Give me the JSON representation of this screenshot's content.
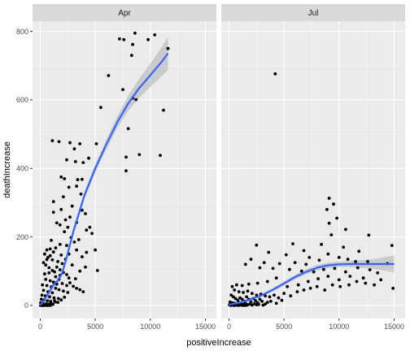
{
  "chart_data": {
    "type": "scatter",
    "xlabel": "positiveIncrease",
    "ylabel": "deathIncrease",
    "xlim": [
      -700,
      16000
    ],
    "ylim": [
      -38,
      830
    ],
    "x_ticks": [
      0,
      5000,
      10000,
      15000
    ],
    "x_tick_labels": [
      "0",
      "5000",
      "10000",
      "15000"
    ],
    "y_ticks": [
      0,
      200,
      400,
      600,
      800
    ],
    "y_tick_labels": [
      "0",
      "200",
      "400",
      "600",
      "800"
    ],
    "grid": true,
    "background": "#ebebeb",
    "strip_background": "#d9d9d9",
    "point_color": "#000000",
    "smooth_color": "#3366ff",
    "ribbon_color": "#999999",
    "panels": [
      {
        "strip": "Apr",
        "points": [
          [
            8600,
            795
          ],
          [
            10400,
            790
          ],
          [
            7200,
            778
          ],
          [
            9800,
            776
          ],
          [
            11600,
            750
          ],
          [
            7600,
            776
          ],
          [
            8400,
            762
          ],
          [
            8300,
            730
          ],
          [
            6200,
            671
          ],
          [
            7500,
            630
          ],
          [
            8400,
            605
          ],
          [
            8700,
            601
          ],
          [
            5500,
            578
          ],
          [
            11200,
            570
          ],
          [
            8000,
            516
          ],
          [
            1100,
            481
          ],
          [
            1700,
            478
          ],
          [
            2700,
            475
          ],
          [
            3600,
            472
          ],
          [
            5100,
            472
          ],
          [
            3100,
            457
          ],
          [
            9000,
            440
          ],
          [
            7800,
            433
          ],
          [
            10900,
            438
          ],
          [
            4400,
            430
          ],
          [
            2400,
            425
          ],
          [
            3200,
            420
          ],
          [
            3900,
            417
          ],
          [
            7800,
            393
          ],
          [
            1900,
            375
          ],
          [
            2200,
            370
          ],
          [
            3400,
            367
          ],
          [
            3800,
            368
          ],
          [
            2600,
            345
          ],
          [
            3300,
            348
          ],
          [
            2100,
            317
          ],
          [
            3700,
            325
          ],
          [
            1200,
            303
          ],
          [
            2900,
            290
          ],
          [
            1900,
            280
          ],
          [
            3800,
            278
          ],
          [
            4100,
            268
          ],
          [
            2700,
            258
          ],
          [
            1200,
            272
          ],
          [
            2300,
            250
          ],
          [
            3300,
            242
          ],
          [
            4500,
            228
          ],
          [
            4200,
            220
          ],
          [
            1500,
            241
          ],
          [
            1800,
            235
          ],
          [
            2500,
            228
          ],
          [
            2200,
            215
          ],
          [
            1000,
            190
          ],
          [
            2800,
            198
          ],
          [
            3500,
            192
          ],
          [
            4700,
            210
          ],
          [
            3100,
            185
          ],
          [
            1800,
            178
          ],
          [
            2400,
            175
          ],
          [
            5000,
            162
          ],
          [
            4200,
            155
          ],
          [
            3800,
            142
          ],
          [
            3300,
            162
          ],
          [
            2600,
            150
          ],
          [
            1900,
            147
          ],
          [
            1400,
            168
          ],
          [
            900,
            165
          ],
          [
            600,
            162
          ],
          [
            400,
            150
          ],
          [
            700,
            140
          ],
          [
            1100,
            133
          ],
          [
            1600,
            128
          ],
          [
            2000,
            122
          ],
          [
            2300,
            135
          ],
          [
            2900,
            118
          ],
          [
            4100,
            112
          ],
          [
            5200,
            102
          ],
          [
            3600,
            100
          ],
          [
            1300,
            98
          ],
          [
            800,
            95
          ],
          [
            400,
            92
          ],
          [
            1800,
            88
          ],
          [
            2600,
            80
          ],
          [
            3200,
            78
          ],
          [
            500,
            76
          ],
          [
            900,
            72
          ],
          [
            1200,
            68
          ],
          [
            1500,
            62
          ],
          [
            200,
            60
          ],
          [
            600,
            58
          ],
          [
            1000,
            54
          ],
          [
            1400,
            50
          ],
          [
            1700,
            46
          ],
          [
            300,
            44
          ],
          [
            700,
            40
          ],
          [
            1100,
            37
          ],
          [
            2100,
            42
          ],
          [
            2500,
            38
          ],
          [
            150,
            30
          ],
          [
            450,
            28
          ],
          [
            850,
            25
          ],
          [
            1250,
            22
          ],
          [
            1650,
            20
          ],
          [
            100,
            18
          ],
          [
            350,
            16
          ],
          [
            650,
            14
          ],
          [
            950,
            12
          ],
          [
            1350,
            10
          ],
          [
            50,
            8
          ],
          [
            250,
            6
          ],
          [
            550,
            5
          ],
          [
            800,
            4
          ],
          [
            1150,
            3
          ],
          [
            80,
            2
          ],
          [
            200,
            1
          ],
          [
            420,
            1
          ],
          [
            600,
            0
          ],
          [
            900,
            0
          ],
          [
            30,
            0
          ],
          [
            120,
            0
          ],
          [
            260,
            0
          ],
          [
            380,
            0
          ],
          [
            700,
            0
          ],
          [
            1000,
            6
          ],
          [
            1300,
            14
          ],
          [
            1600,
            9
          ],
          [
            1900,
            16
          ],
          [
            2200,
            24
          ],
          [
            2400,
            58
          ],
          [
            2000,
            64
          ],
          [
            1700,
            76
          ],
          [
            1400,
            84
          ],
          [
            1100,
            102
          ],
          [
            800,
            110
          ],
          [
            500,
            118
          ],
          [
            300,
            125
          ],
          [
            600,
            134
          ],
          [
            900,
            145
          ],
          [
            1200,
            156
          ],
          [
            1500,
            112
          ],
          [
            1800,
            104
          ],
          [
            2100,
            96
          ],
          [
            2400,
            90
          ],
          [
            2700,
            66
          ],
          [
            3000,
            56
          ],
          [
            3300,
            50
          ],
          [
            3600,
            46
          ],
          [
            3900,
            40
          ]
        ],
        "smooth": {
          "x": [
            0,
            400,
            800,
            1200,
            1600,
            2000,
            2400,
            3000,
            4000,
            5000,
            6000,
            7000,
            8000,
            9000,
            10000,
            11000,
            11600
          ],
          "y": [
            0,
            18,
            38,
            60,
            72,
            95,
            140,
            215,
            320,
            400,
            470,
            535,
            590,
            635,
            672,
            710,
            736
          ],
          "upper": [
            0,
            23,
            45,
            68,
            80,
            103,
            148,
            225,
            330,
            412,
            484,
            552,
            612,
            663,
            706,
            752,
            784
          ],
          "lower": [
            0,
            13,
            31,
            52,
            64,
            87,
            132,
            205,
            310,
            388,
            456,
            518,
            568,
            607,
            638,
            668,
            688
          ]
        }
      },
      {
        "strip": "Jul",
        "points": [
          [
            4200,
            676
          ],
          [
            9100,
            313
          ],
          [
            9500,
            296
          ],
          [
            8900,
            280
          ],
          [
            9800,
            255
          ],
          [
            9100,
            240
          ],
          [
            10600,
            222
          ],
          [
            12700,
            205
          ],
          [
            14800,
            175
          ],
          [
            9300,
            206
          ],
          [
            2500,
            176
          ],
          [
            5800,
            180
          ],
          [
            6800,
            160
          ],
          [
            8400,
            178
          ],
          [
            10400,
            170
          ],
          [
            3600,
            155
          ],
          [
            5200,
            148
          ],
          [
            11800,
            158
          ],
          [
            7300,
            140
          ],
          [
            9000,
            150
          ],
          [
            10000,
            140
          ],
          [
            10800,
            135
          ],
          [
            11500,
            128
          ],
          [
            12600,
            128
          ],
          [
            14400,
            122
          ],
          [
            8200,
            132
          ],
          [
            7000,
            120
          ],
          [
            6000,
            125
          ],
          [
            4600,
            122
          ],
          [
            3200,
            125
          ],
          [
            2000,
            135
          ],
          [
            1500,
            120
          ],
          [
            2800,
            110
          ],
          [
            4000,
            108
          ],
          [
            5500,
            105
          ],
          [
            6600,
            100
          ],
          [
            7700,
            98
          ],
          [
            8600,
            105
          ],
          [
            9600,
            108
          ],
          [
            10600,
            98
          ],
          [
            11700,
            110
          ],
          [
            12800,
            104
          ],
          [
            13500,
            95
          ],
          [
            14900,
            50
          ],
          [
            13800,
            75
          ],
          [
            12200,
            80
          ],
          [
            11000,
            85
          ],
          [
            10000,
            75
          ],
          [
            9000,
            85
          ],
          [
            8100,
            78
          ],
          [
            7200,
            70
          ],
          [
            6300,
            60
          ],
          [
            5300,
            55
          ],
          [
            4300,
            80
          ],
          [
            3500,
            70
          ],
          [
            2600,
            65
          ],
          [
            1800,
            62
          ],
          [
            1200,
            58
          ],
          [
            700,
            60
          ],
          [
            300,
            55
          ],
          [
            500,
            45
          ],
          [
            900,
            40
          ],
          [
            1300,
            38
          ],
          [
            1700,
            42
          ],
          [
            2100,
            35
          ],
          [
            2500,
            30
          ],
          [
            2900,
            33
          ],
          [
            3300,
            28
          ],
          [
            3700,
            25
          ],
          [
            4100,
            30
          ],
          [
            4500,
            22
          ],
          [
            5000,
            35
          ],
          [
            5600,
            28
          ],
          [
            6200,
            40
          ],
          [
            6800,
            45
          ],
          [
            7400,
            50
          ],
          [
            8000,
            55
          ],
          [
            8700,
            45
          ],
          [
            9400,
            60
          ],
          [
            10100,
            55
          ],
          [
            10900,
            60
          ],
          [
            11600,
            70
          ],
          [
            12400,
            65
          ],
          [
            13200,
            60
          ],
          [
            200,
            30
          ],
          [
            400,
            25
          ],
          [
            600,
            20
          ],
          [
            800,
            15
          ],
          [
            1000,
            22
          ],
          [
            1200,
            18
          ],
          [
            1400,
            12
          ],
          [
            1600,
            25
          ],
          [
            1800,
            18
          ],
          [
            2000,
            10
          ],
          [
            2200,
            20
          ],
          [
            2400,
            14
          ],
          [
            2600,
            8
          ],
          [
            2800,
            18
          ],
          [
            3000,
            12
          ],
          [
            100,
            10
          ],
          [
            300,
            8
          ],
          [
            500,
            6
          ],
          [
            700,
            4
          ],
          [
            900,
            8
          ],
          [
            1100,
            5
          ],
          [
            1300,
            3
          ],
          [
            1500,
            6
          ],
          [
            1700,
            2
          ],
          [
            1900,
            4
          ],
          [
            2100,
            1
          ],
          [
            2300,
            5
          ],
          [
            2500,
            2
          ],
          [
            2700,
            3
          ],
          [
            3100,
            1
          ],
          [
            50,
            2
          ],
          [
            150,
            0
          ],
          [
            250,
            1
          ],
          [
            450,
            0
          ],
          [
            650,
            1
          ],
          [
            850,
            0
          ],
          [
            1050,
            1
          ],
          [
            1250,
            0
          ],
          [
            1450,
            0
          ],
          [
            1650,
            1
          ],
          [
            3300,
            4
          ],
          [
            3500,
            9
          ],
          [
            3800,
            12
          ],
          [
            4300,
            6
          ],
          [
            4800,
            15
          ]
        ],
        "smooth": {
          "x": [
            0,
            1000,
            2000,
            3000,
            4000,
            5000,
            6000,
            7000,
            8000,
            9000,
            10000,
            11000,
            12000,
            13000,
            14000,
            15000
          ],
          "y": [
            2,
            8,
            18,
            30,
            46,
            64,
            83,
            98,
            110,
            117,
            120,
            121,
            121,
            121,
            121,
            121
          ],
          "upper": [
            6,
            11,
            21,
            34,
            51,
            70,
            89,
            105,
            118,
            125,
            128,
            130,
            132,
            135,
            140,
            146
          ],
          "lower": [
            -2,
            5,
            15,
            26,
            41,
            58,
            77,
            91,
            102,
            109,
            112,
            112,
            110,
            107,
            102,
            96
          ]
        }
      }
    ]
  }
}
